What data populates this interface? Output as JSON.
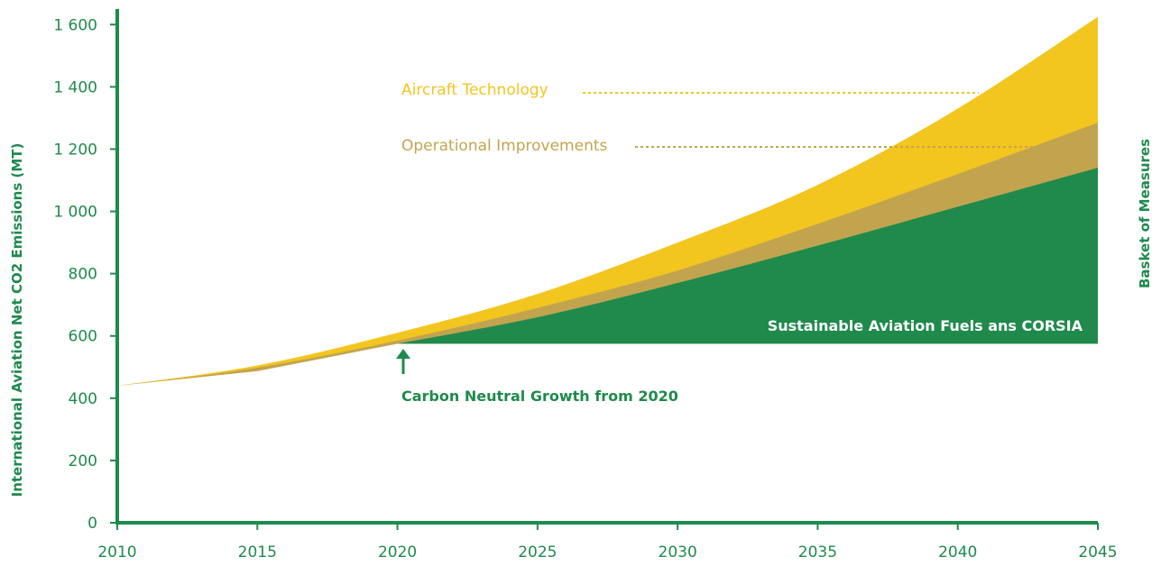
{
  "chart_data": {
    "type": "area",
    "ylabel": "International Aviation Net CO2 Emissions (MT)",
    "right_label": "Basket of Measures",
    "x": [
      2010,
      2015,
      2020,
      2025,
      2030,
      2035,
      2040,
      2045
    ],
    "x_tick_labels": [
      "2010",
      "2015",
      "2020",
      "2025",
      "2030",
      "2035",
      "2040",
      "2045"
    ],
    "y_ticks": [
      0,
      200,
      400,
      600,
      800,
      1000,
      1200,
      1400,
      1600
    ],
    "y_tick_labels": [
      "0",
      "200",
      "400",
      "600",
      "800",
      "1 000",
      "1 200",
      "1 400",
      "1 600"
    ],
    "xlim": [
      2010,
      2045
    ],
    "ylim": [
      0,
      1650
    ],
    "grid": false,
    "cng_level": 575,
    "cng_start_year": 2020,
    "series": [
      {
        "name": "Sustainable Aviation Fuels ans CORSIA",
        "values": [
          440,
          495,
          575,
          660,
          770,
          890,
          1015,
          1140
        ],
        "color": "#1f8a4c"
      },
      {
        "name": "Operational Improvements",
        "values": [
          440,
          498,
          585,
          690,
          810,
          960,
          1120,
          1285
        ],
        "color": "#c2a44f"
      },
      {
        "name": "Aircraft Technology",
        "values": [
          440,
          505,
          610,
          735,
          900,
          1085,
          1330,
          1625
        ],
        "color": "#f3c51f"
      }
    ],
    "annotations": {
      "aircraft_technology": "Aircraft Technology",
      "operational_improvements": "Operational Improvements",
      "saf_corsia": "Sustainable Aviation Fuels ans CORSIA",
      "carbon_neutral": "Carbon Neutral Growth from 2020"
    },
    "colors": {
      "axis": "#1f8a4c",
      "aircraft_technology": "#f3c51f",
      "operational_improvements": "#c2a44f",
      "saf_corsia": "#1f8a4c"
    }
  }
}
